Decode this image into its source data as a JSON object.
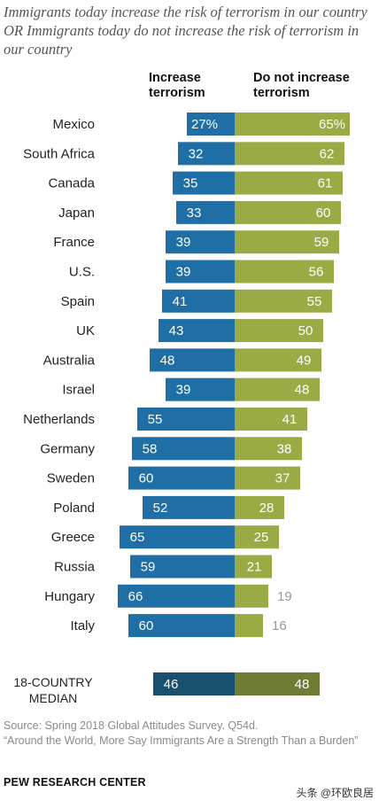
{
  "title": "Immigrants today increase the risk of terrorism in our country OR Immigrants today do not increase the risk of terrorism in our country",
  "column_headers": {
    "left": "Increase terrorism",
    "right": "Do not increase terrorism"
  },
  "source": "Source: Spring 2018 Global Attitudes Survey. Q54d.",
  "report": "“Around the World, More Say Immigrants Are a Strength Than a Burden”",
  "brand": "PEW RESEARCH CENTER",
  "watermark": "头条 @环欧良居",
  "colors": {
    "increase": "#1f6fa6",
    "not_increase": "#9aaa45",
    "median_increase": "#17506f",
    "median_not_increase": "#6f7d34"
  },
  "chart_data": {
    "type": "bar",
    "orientation": "horizontal diverging",
    "categories": [
      "Mexico",
      "South Africa",
      "Canada",
      "Japan",
      "France",
      "U.S.",
      "Spain",
      "UK",
      "Australia",
      "Israel",
      "Netherlands",
      "Germany",
      "Sweden",
      "Poland",
      "Greece",
      "Russia",
      "Hungary",
      "Italy"
    ],
    "series": [
      {
        "name": "Increase terrorism",
        "values": [
          27,
          32,
          35,
          33,
          39,
          39,
          41,
          43,
          48,
          39,
          55,
          58,
          60,
          52,
          65,
          59,
          66,
          60
        ]
      },
      {
        "name": "Do not increase terrorism",
        "values": [
          65,
          62,
          61,
          60,
          59,
          56,
          55,
          50,
          49,
          48,
          41,
          38,
          37,
          28,
          25,
          21,
          19,
          16
        ]
      }
    ],
    "value_labels": {
      "increase": [
        "27%",
        "32",
        "35",
        "33",
        "39",
        "39",
        "41",
        "43",
        "48",
        "39",
        "55",
        "58",
        "60",
        "52",
        "65",
        "59",
        "66",
        "60"
      ],
      "not_increase": [
        "65%",
        "62",
        "61",
        "60",
        "59",
        "56",
        "55",
        "50",
        "49",
        "48",
        "41",
        "38",
        "37",
        "28",
        "25",
        "21",
        "19",
        "16"
      ]
    },
    "median": {
      "label": "18-COUNTRY MEDIAN",
      "increase": 46,
      "not_increase": 48
    }
  }
}
